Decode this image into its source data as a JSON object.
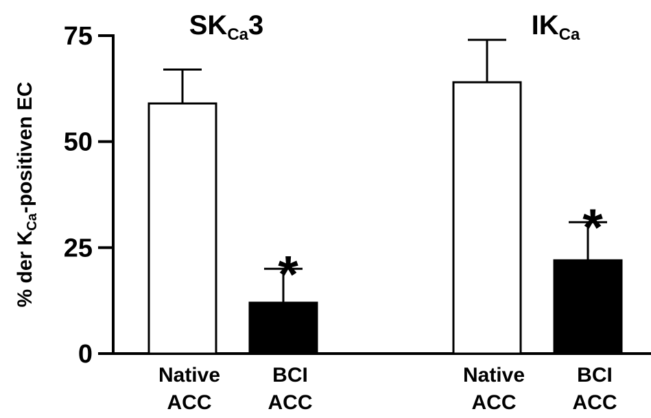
{
  "chart_data": {
    "type": "bar",
    "ylabel": {
      "main": "% der K",
      "sub": "Ca",
      "rest": "-positiven EC"
    },
    "ylim": [
      0,
      75
    ],
    "yticks": [
      0,
      25,
      50,
      75
    ],
    "grid": false,
    "groups": [
      {
        "title": {
          "main": "SK",
          "sub": "Ca",
          "suffix": "3"
        },
        "bars": [
          {
            "label_line1": "Native",
            "label_line2": "ACC",
            "value": 59,
            "error": 8,
            "fill": "#ffffff",
            "significant": false
          },
          {
            "label_line1": "BCI",
            "label_line2": "ACC",
            "value": 12,
            "error": 8,
            "fill": "#000000",
            "significant": true
          }
        ]
      },
      {
        "title": {
          "main": "IK",
          "sub": "Ca",
          "suffix": ""
        },
        "bars": [
          {
            "label_line1": "Native",
            "label_line2": "ACC",
            "value": 64,
            "error": 10,
            "fill": "#ffffff",
            "significant": false
          },
          {
            "label_line1": "BCI",
            "label_line2": "ACC",
            "value": 22,
            "error": 9,
            "fill": "#000000",
            "significant": true
          }
        ]
      }
    ],
    "significance_marker": "*"
  }
}
